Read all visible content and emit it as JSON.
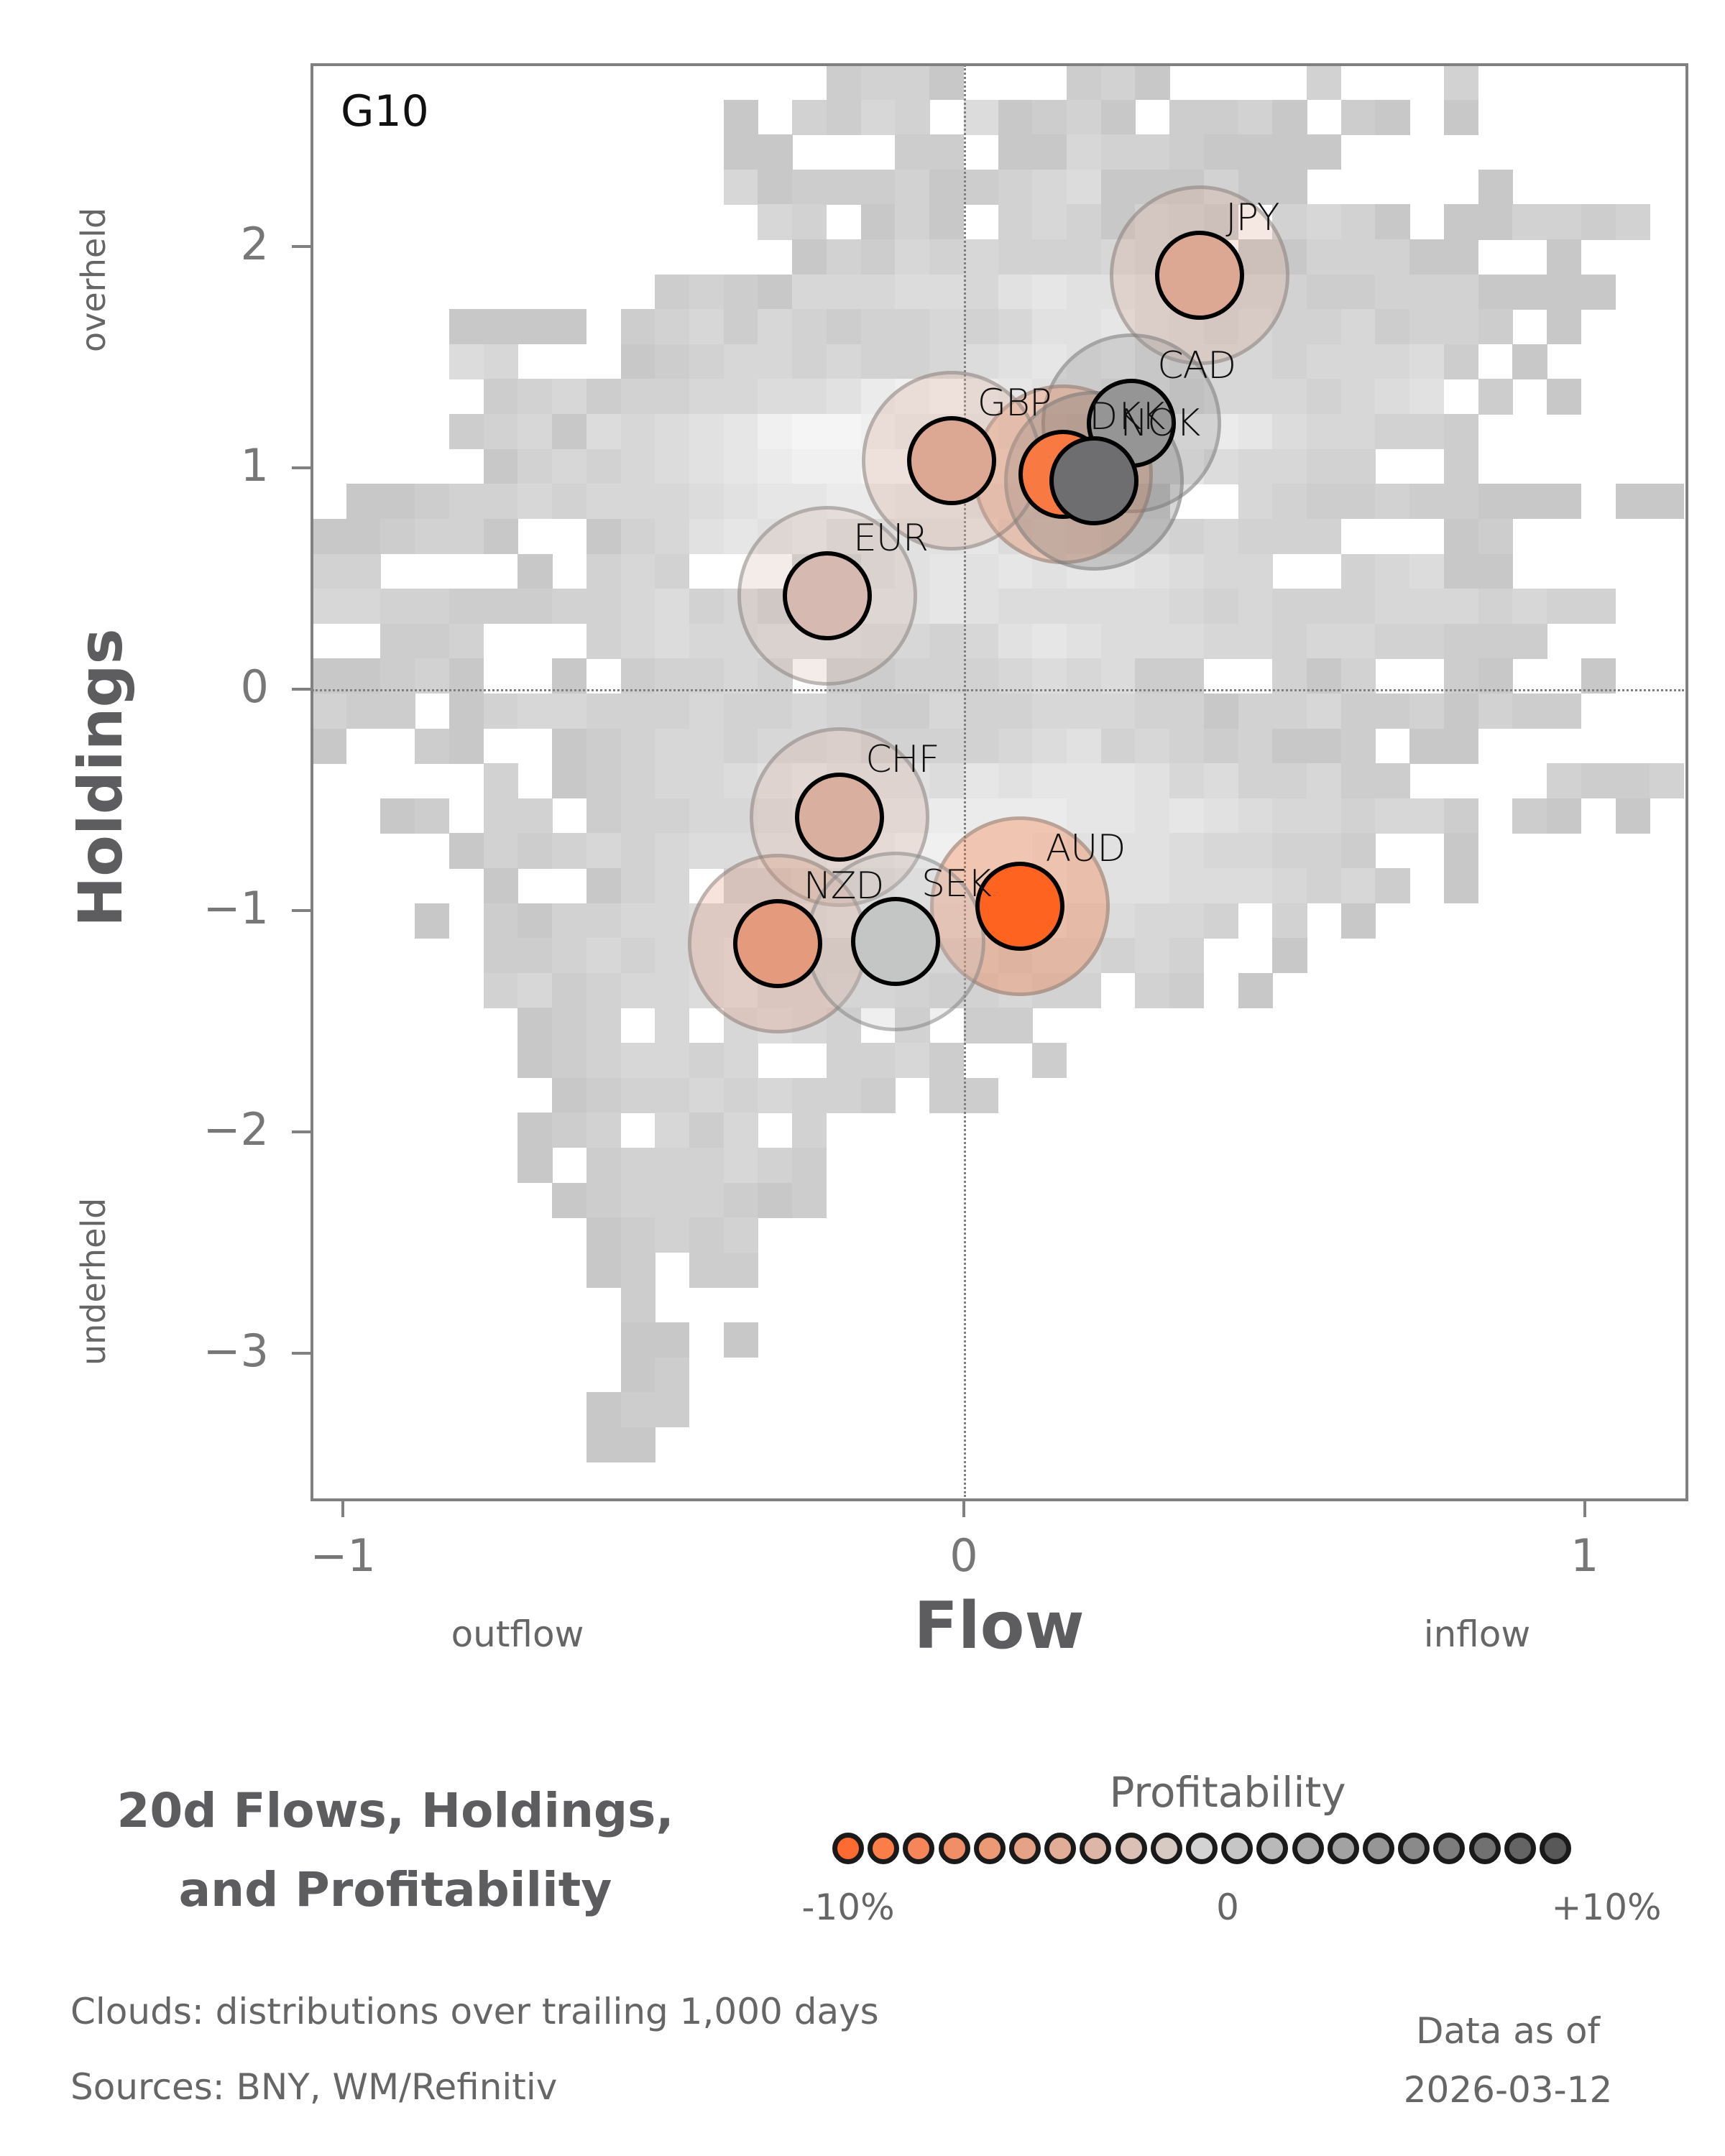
{
  "chart_data": {
    "type": "scatter",
    "title": "20d Flows, Holdings, and Profitability",
    "title_lines": [
      "20d Flows, Holdings,",
      "and Profitability"
    ],
    "panel_label": "G10",
    "xlabel": "Flow",
    "ylabel": "Holdings",
    "x_notes": {
      "left": "outflow",
      "right": "inflow"
    },
    "y_notes": {
      "top": "overheld",
      "bottom": "underheld"
    },
    "xlim": [
      -1.05,
      1.16
    ],
    "ylim": [
      -3.65,
      2.82
    ],
    "xticks": [
      {
        "value": -1,
        "label": "−1"
      },
      {
        "value": 0,
        "label": "0"
      },
      {
        "value": 1,
        "label": "1"
      }
    ],
    "yticks": [
      {
        "value": 2,
        "label": "2"
      },
      {
        "value": 1,
        "label": "1"
      },
      {
        "value": 0,
        "label": "0"
      },
      {
        "value": -1,
        "label": "−1"
      },
      {
        "value": -2,
        "label": "−2"
      },
      {
        "value": -3,
        "label": "−3"
      }
    ],
    "reference_lines": {
      "x": 0,
      "y": 0,
      "style": "dotted"
    },
    "background": "2D histogram 'clouds' of historical flow/holdings (gray)",
    "points": [
      {
        "label": "JPY",
        "flow": 0.38,
        "holdings": 1.87,
        "profitability_pct": -3.5,
        "color": "#dca893"
      },
      {
        "label": "CAD",
        "flow": 0.27,
        "holdings": 1.2,
        "profitability_pct": 5.5,
        "color": "#959595"
      },
      {
        "label": "DKK",
        "flow": 0.16,
        "holdings": 0.97,
        "profitability_pct": -9.0,
        "color": "#f87a42"
      },
      {
        "label": "NOK",
        "flow": 0.21,
        "holdings": 0.94,
        "profitability_pct": 8.0,
        "color": "#6e6e70"
      },
      {
        "label": "GBP",
        "flow": -0.02,
        "holdings": 1.03,
        "profitability_pct": -3.5,
        "color": "#dca893"
      },
      {
        "label": "EUR",
        "flow": -0.22,
        "holdings": 0.42,
        "profitability_pct": -2.0,
        "color": "#d6b9b0"
      },
      {
        "label": "CHF",
        "flow": -0.2,
        "holdings": -0.58,
        "profitability_pct": -2.5,
        "color": "#d9b09f"
      },
      {
        "label": "AUD",
        "flow": 0.09,
        "holdings": -0.98,
        "profitability_pct": -10.0,
        "color": "#fe6420"
      },
      {
        "label": "NZD",
        "flow": -0.3,
        "holdings": -1.15,
        "profitability_pct": -5.0,
        "color": "#e49a7c"
      },
      {
        "label": "SEK",
        "flow": -0.11,
        "holdings": -1.14,
        "profitability_pct": 1.0,
        "color": "#c4c6c6"
      }
    ],
    "legend": {
      "title": "Profitability",
      "type": "colorscale",
      "ticks": [
        "-10%",
        "0",
        "+10%"
      ],
      "colors": [
        "#fe6a31",
        "#fb7d48",
        "#f6865a",
        "#f08f67",
        "#eb9a75",
        "#e5a286",
        "#e2ad96",
        "#ddb6a8",
        "#dbc0b6",
        "#d7cac3",
        "#d3d3d3",
        "#c6c6c6",
        "#b9b9b9",
        "#adadad",
        "#a2a2a2",
        "#969696",
        "#8a8a8a",
        "#7d7d7d",
        "#717171",
        "#646464",
        "#585858"
      ]
    }
  },
  "heatmap": {
    "cols": 40,
    "rows": 41,
    "shades": {
      "a": "#c8c8c8",
      "b": "#cdcdcd",
      "c": "#d2d2d2",
      "d": "#d7d7d7",
      "e": "#dcdcdc",
      "f": "#e1e1e1",
      "g": "#e6e6e6",
      "h": "#ebebeb",
      "i": "#f0f0f0",
      "j": "#f5f5f5"
    },
    "grid": [
      "...............bcca...bca....c...c......",
      "............a.cbdc.eabca.bbca.ba.a......",
      "............aa...bb.aadccbaaaa..........",
      "............dabbbcabcdeaaacaa.....a.....",
      ".............dc.aca.cdcacba.cdca.aaccbc.",
      "..............acbdcdcccdcd.aacccaa..a...",
      "..........bcbadddeedfgffedcccbbcccaaaa..",
      "....aaaa.bcdbdcbccdcdffgedcdccdbccb.a...",
      "....ed...abcddcdccdefgfgedddcdddeb.a....",
      ".....bcdbccddeefhijhgffeecdddcdef.b.a...",
      "....bcdaedefgijjihhgfedefhhgeddccb......",
      ".....acdcdefghiijjhggffgggeddcc..b......",
      ".aabccdcdddefgghhggffeedc..dcbbcbbaaa.aa",
      "aabcca..acdfgfgeeffgefeddcdccc...ab.....",
      "cc....a.cdc...cbefgfgfggfedd..cdeaa.....",
      "ddccbbbccdecdbdcffgfeeeeedcdcccdddcdcc..",
      "..bbc...cdeddeeeddcdfgfeeeddcddccbbb....",
      "aabca..a.bccdc.bbcccdedebb..cac..ba..a..",
      "cbb.acddcccdccdcbbdccdddccaccdbbcacbb...",
      "a..ba..abcddcddeccccdefcdcbcaab.aa......",
      ".....c.abcddefgfffegfgggfdeccdbb....cbbc",
      "..ab.cc.bccddeffgghhhhggfgfeddcddb.ba.a.",
      "....acbcdcdeeffghiihhgfffeddccb..a......",
      ".....a..acd.ccdefghhggfffeeedcdb.a......",
      "...a.baccddeeefgggggffeeddc.c.a.........",
      ".....bbcdcdefcddffedcddcdc..a...........",
      ".....cdbcddefddeedccdcc.cb.a............",
      "......abc.d.dedc.c.bb...................",
      "......abcddcd..ccdb..b..................",
      ".......abccdcdccb.bb....................",
      "......abc.dbd.c.........................",
      "......a.bcccdcb.........................",
      ".......abcccbab.........................",
      "........abcbc...........................",
      "........ab.bb...........................",
      ".........b..............................",
      ".........aa.a...........................",
      ".........ab.............................",
      "........abb.............................",
      "........aa..............................",
      "........................................"
    ]
  },
  "footer": {
    "clouds_note": "Clouds:  distributions over trailing 1,000 days",
    "sources": "Sources:  BNY, WM/Refinitiv",
    "data_as_of_label": "Data as of",
    "data_as_of_date": "2026-03-12"
  }
}
